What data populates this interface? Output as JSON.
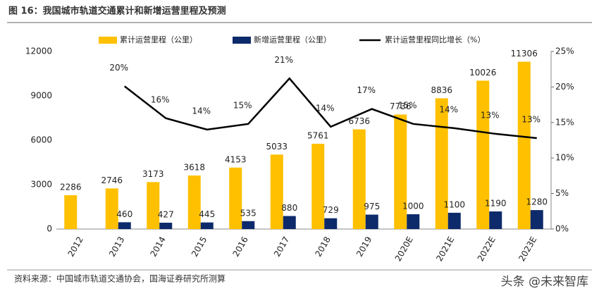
{
  "header": {
    "title": "图 16：我国城市轨道交通累计和新增运营里程及预测"
  },
  "chart_data": {
    "type": "bar-line",
    "categories": [
      "2012",
      "2013",
      "2014",
      "2015",
      "2016",
      "2017",
      "2018",
      "2019",
      "2020E",
      "2021E",
      "2022E",
      "2023E"
    ],
    "series": [
      {
        "name": "累计运营里程（公里）",
        "type": "bar",
        "color": "#FFC000",
        "values": [
          2286,
          2746,
          3173,
          3618,
          4153,
          5033,
          5761,
          6736,
          7736,
          8836,
          10026,
          11306
        ]
      },
      {
        "name": "新增运营里程（公里）",
        "type": "bar",
        "color": "#0D2A6B",
        "values": [
          null,
          460,
          427,
          445,
          535,
          880,
          729,
          975,
          1000,
          1100,
          1190,
          1280
        ]
      },
      {
        "name": "累计运营里程同比增长（%）",
        "type": "line",
        "axis": "y2",
        "color": "#000000",
        "values": [
          null,
          20.1,
          15.6,
          14.0,
          14.8,
          21.2,
          14.4,
          16.9,
          14.8,
          14.2,
          13.4,
          12.8
        ],
        "value_labels": [
          null,
          "20%",
          "16%",
          "14%",
          "15%",
          "21%",
          "14%",
          "17%",
          "15%",
          "14%",
          "13%",
          "13%"
        ]
      }
    ],
    "ylim": [
      0,
      12000
    ],
    "yticks": [
      0,
      3000,
      6000,
      9000,
      12000
    ],
    "y2lim": [
      0,
      25
    ],
    "y2ticks": [
      {
        "value": 0,
        "label": "0%"
      },
      {
        "value": 5,
        "label": "5%"
      },
      {
        "value": 10,
        "label": "10%"
      },
      {
        "value": 15,
        "label": "15%"
      },
      {
        "value": 20,
        "label": "20%"
      },
      {
        "value": 25,
        "label": "25%"
      }
    ]
  },
  "footer": {
    "source": "资料来源：中国城市轨道交通协会，国海证券研究所测算",
    "watermark": "头条 @未来智库"
  }
}
